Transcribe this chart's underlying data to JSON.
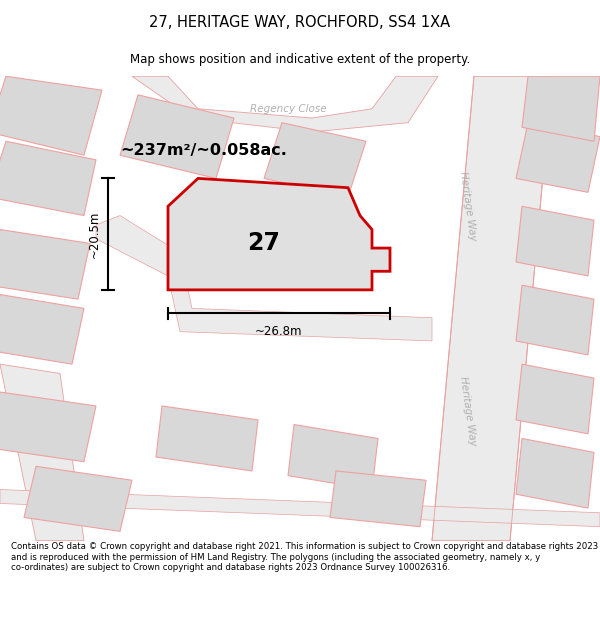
{
  "title": "27, HERITAGE WAY, ROCHFORD, SS4 1XA",
  "subtitle": "Map shows position and indicative extent of the property.",
  "footer": "Contains OS data © Crown copyright and database right 2021. This information is subject to Crown copyright and database rights 2023 and is reproduced with the permission of HM Land Registry. The polygons (including the associated geometry, namely x, y co-ordinates) are subject to Crown copyright and database rights 2023 Ordnance Survey 100026316.",
  "area_label": "~237m²/~0.058ac.",
  "number_label": "27",
  "dim_width": "~26.8m",
  "dim_height": "~20.5m",
  "road_label_top": "Heritage Way",
  "road_label_bot": "Heritage Way",
  "close_label": "Regency Close",
  "map_bg": "#f2f2f2",
  "plot_fill": "#e0e0e0",
  "plot_edge": "#cc0000",
  "bldg_fill": "#d8d8d8",
  "bldg_edge": "#f0a0a0",
  "road_fill": "#ebebeb",
  "road_edge": "#e8a0a0",
  "text_road": "#b0b0b0"
}
